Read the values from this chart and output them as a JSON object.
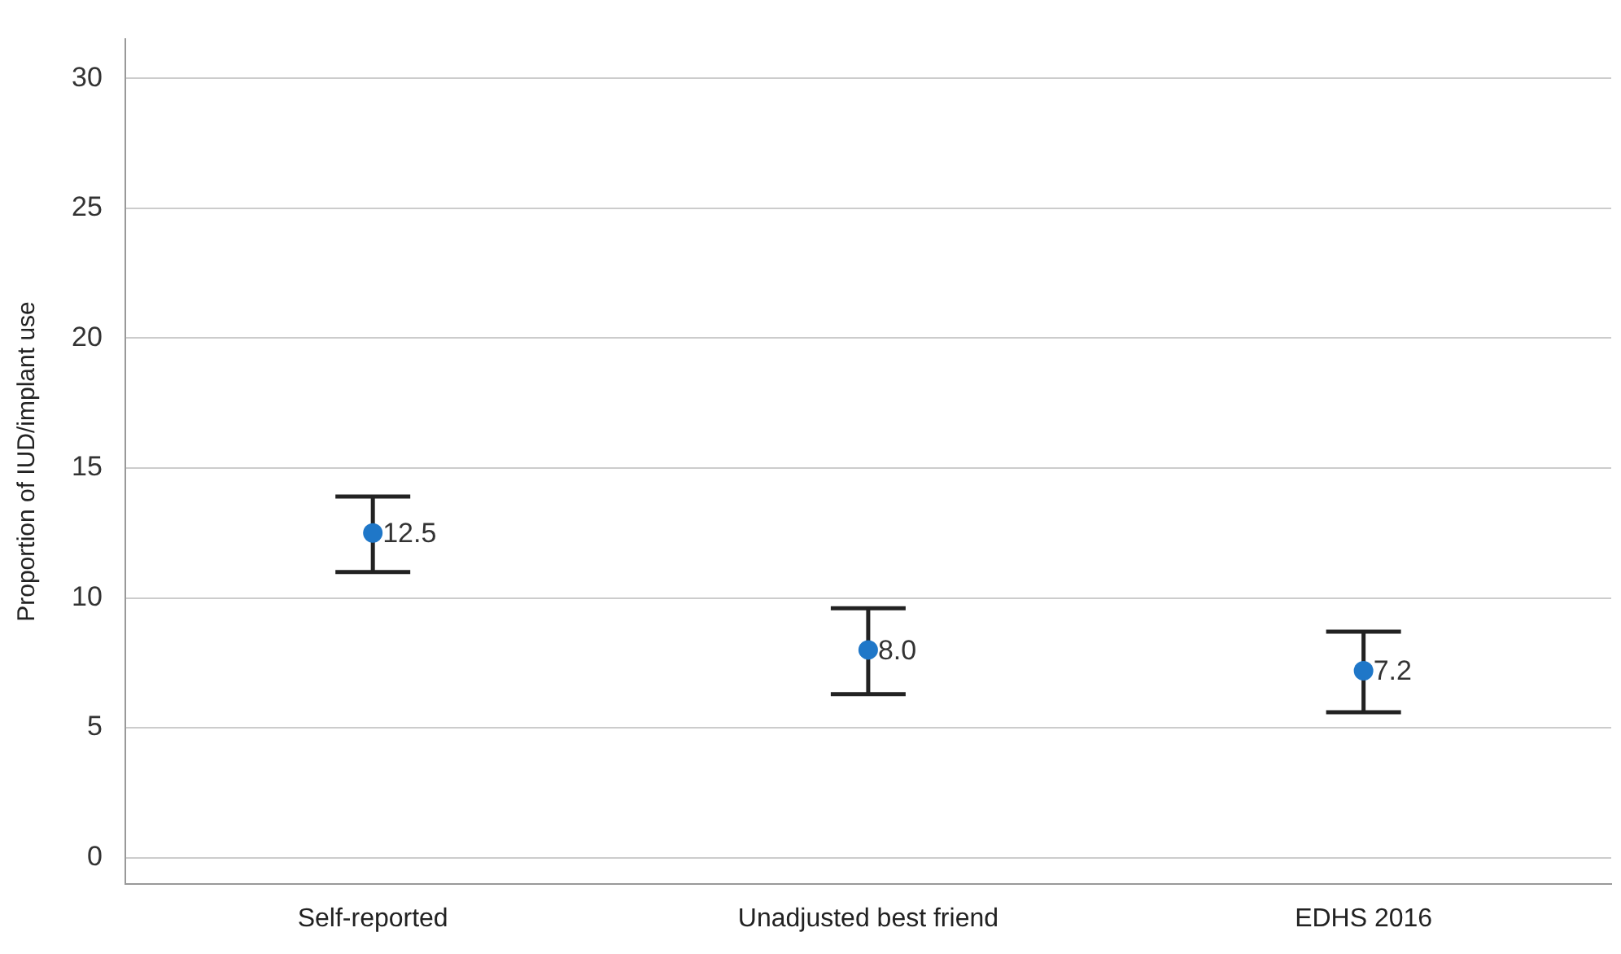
{
  "chart_data": {
    "type": "scatter",
    "ylabel": "Proportion of IUD/implant use",
    "categories": [
      "Self-reported",
      "Unadjusted best friend",
      "EDHS 2016"
    ],
    "values": [
      12.5,
      8.0,
      7.2
    ],
    "errors": [
      [
        11.0,
        13.9
      ],
      [
        6.3,
        9.6
      ],
      [
        5.6,
        8.7
      ]
    ],
    "value_labels": [
      "12.5",
      "8.0",
      "7.2"
    ],
    "color": "#1f77c8",
    "marker": "circle",
    "ylim": [
      -1,
      31.5
    ],
    "yticks": [
      0,
      5,
      10,
      15,
      20,
      25,
      30
    ],
    "grid": "y",
    "legend": false
  }
}
